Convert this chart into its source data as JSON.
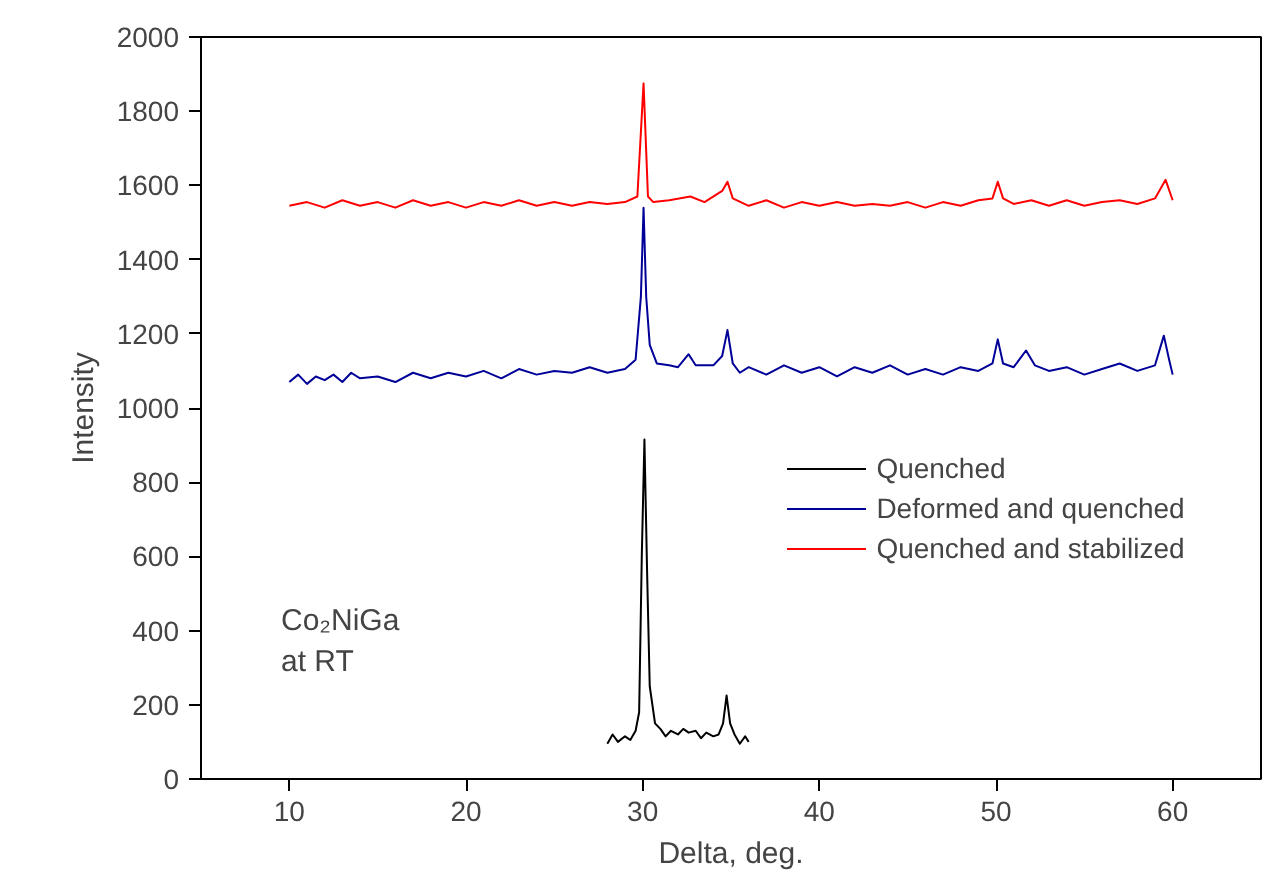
{
  "chart_data": {
    "type": "line",
    "xlabel": "Delta, deg.",
    "ylabel": "Intensity",
    "xlim": [
      5,
      65
    ],
    "ylim": [
      0,
      2000
    ],
    "xticks": [
      10,
      20,
      30,
      40,
      50,
      60
    ],
    "yticks": [
      0,
      200,
      400,
      600,
      800,
      1000,
      1200,
      1400,
      1600,
      1800,
      2000
    ],
    "grid": false,
    "legend": "bottom right",
    "line_style": "solid",
    "marker": "none",
    "annotations": [
      "Co₂NiGa\nat RT"
    ],
    "series": [
      {
        "name": "Quenched",
        "color": "#000000",
        "x": [
          28,
          28.3,
          28.6,
          29,
          29.3,
          29.6,
          29.8,
          29.95,
          30.1,
          30.25,
          30.4,
          30.7,
          31,
          31.3,
          31.6,
          32,
          32.3,
          32.6,
          33,
          33.3,
          33.6,
          34,
          34.3,
          34.55,
          34.75,
          34.95,
          35.2,
          35.5,
          35.8,
          36
        ],
        "values": [
          95,
          120,
          100,
          115,
          105,
          130,
          180,
          600,
          915,
          560,
          250,
          150,
          135,
          115,
          130,
          120,
          135,
          125,
          130,
          110,
          125,
          115,
          120,
          150,
          225,
          150,
          120,
          95,
          115,
          100
        ]
      },
      {
        "name": "Deformed and quenched",
        "color": "#000099",
        "x": [
          10,
          10.5,
          11,
          11.5,
          12,
          12.5,
          13,
          13.5,
          14,
          15,
          16,
          17,
          18,
          19,
          20,
          21,
          22,
          23,
          24,
          25,
          26,
          27,
          28,
          29,
          29.6,
          29.9,
          30.05,
          30.2,
          30.4,
          30.8,
          31.5,
          32,
          32.6,
          33,
          34,
          34.5,
          34.8,
          35.1,
          35.5,
          36,
          37,
          38,
          39,
          40,
          41,
          42,
          43,
          44,
          45,
          46,
          47,
          48,
          49,
          49.8,
          50.1,
          50.4,
          51,
          51.7,
          52.2,
          53,
          54,
          55,
          56,
          57,
          58,
          59,
          59.5,
          59.8,
          60
        ],
        "values": [
          1070,
          1090,
          1065,
          1085,
          1075,
          1090,
          1070,
          1095,
          1080,
          1085,
          1070,
          1095,
          1080,
          1095,
          1085,
          1100,
          1080,
          1105,
          1090,
          1100,
          1095,
          1110,
          1095,
          1105,
          1130,
          1300,
          1540,
          1300,
          1170,
          1120,
          1115,
          1110,
          1145,
          1115,
          1115,
          1140,
          1210,
          1120,
          1095,
          1110,
          1090,
          1115,
          1095,
          1110,
          1085,
          1110,
          1095,
          1115,
          1090,
          1105,
          1090,
          1110,
          1100,
          1120,
          1185,
          1120,
          1110,
          1155,
          1115,
          1100,
          1110,
          1090,
          1105,
          1120,
          1100,
          1115,
          1195,
          1130,
          1090
        ]
      },
      {
        "name": "Quenched and stabilized",
        "color": "#ff0000",
        "x": [
          10,
          11,
          12,
          13,
          14,
          15,
          16,
          17,
          18,
          19,
          20,
          21,
          22,
          23,
          24,
          25,
          26,
          27,
          28,
          29,
          29.7,
          30.05,
          30.3,
          30.6,
          31.5,
          32.7,
          33.5,
          34.5,
          34.8,
          35.1,
          36,
          37,
          38,
          39,
          40,
          41,
          42,
          43,
          44,
          45,
          46,
          47,
          48,
          49,
          49.8,
          50.1,
          50.4,
          51,
          52,
          53,
          54,
          55,
          56,
          57,
          58,
          59,
          59.6,
          60
        ],
        "values": [
          1545,
          1555,
          1540,
          1560,
          1545,
          1555,
          1540,
          1560,
          1545,
          1555,
          1540,
          1555,
          1545,
          1560,
          1545,
          1555,
          1545,
          1555,
          1550,
          1555,
          1570,
          1875,
          1570,
          1555,
          1560,
          1570,
          1555,
          1585,
          1610,
          1565,
          1545,
          1560,
          1540,
          1555,
          1545,
          1555,
          1545,
          1550,
          1545,
          1555,
          1540,
          1555,
          1545,
          1560,
          1565,
          1610,
          1565,
          1550,
          1560,
          1545,
          1560,
          1545,
          1555,
          1560,
          1550,
          1565,
          1615,
          1560
        ]
      }
    ]
  }
}
